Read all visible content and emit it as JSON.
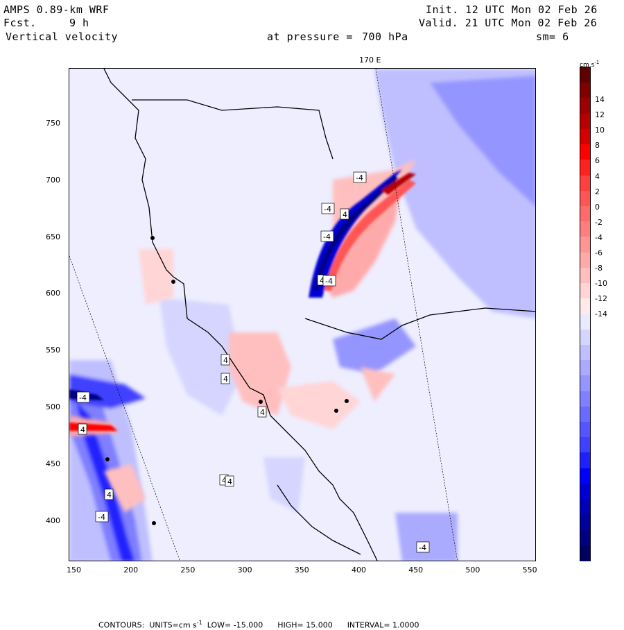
{
  "header": {
    "model": "AMPS 0.89-km WRF",
    "fcst_label": "Fcst.",
    "fcst_value": "9 h",
    "field": "Vertical velocity",
    "init": "Init. 12 UTC Mon 02 Feb 26",
    "valid": "Valid. 21 UTC Mon 02 Feb 26",
    "pressure_label": "at pressure =",
    "pressure_value": "700 hPa",
    "smoothing": "sm= 6",
    "meridian_label": "170 E"
  },
  "colorbar": {
    "units": "cm s",
    "units_exp": "-1",
    "tick_labels": [
      "14",
      "12",
      "10",
      "8",
      "6",
      "4",
      "2",
      "0",
      "-2",
      "-4",
      "-6",
      "-8",
      "-10",
      "-12",
      "-14"
    ],
    "colors": [
      "#000060",
      "#000080",
      "#00009c",
      "#0000b8",
      "#0000d4",
      "#0000ff",
      "#2020ff",
      "#4040ff",
      "#5555ff",
      "#6a6aff",
      "#7f7fff",
      "#9595ff",
      "#aaaaff",
      "#bfbfff",
      "#d5d5ff",
      "#eaeaff",
      "#ffeaea",
      "#ffd5d5",
      "#ffbfbf",
      "#ffaaaa",
      "#ff9595",
      "#ff7f7f",
      "#ff6a6a",
      "#ff5555",
      "#ff4040",
      "#ff2020",
      "#ff0000",
      "#d40000",
      "#b80000",
      "#9c0000",
      "#800000",
      "#600000"
    ]
  },
  "axes": {
    "x_ticks": [
      "150",
      "200",
      "250",
      "300",
      "350",
      "400",
      "450",
      "500",
      "550"
    ],
    "y_ticks": [
      "750",
      "700",
      "650",
      "600",
      "550",
      "500",
      "450",
      "400"
    ]
  },
  "contour_labels": [
    "4",
    "4",
    "4",
    "4",
    "-4",
    "-4",
    "4",
    "-4",
    "4",
    "4",
    "-4",
    "4",
    "-4",
    "4",
    "-4",
    "-4"
  ],
  "footer": {
    "contours_label": "CONTOURS:",
    "units_label": "UNITS=cm s",
    "units_exp": "-1",
    "low": "LOW= -15.000",
    "high": "HIGH= 15.000",
    "interval": "INTERVAL= 1.0000"
  }
}
